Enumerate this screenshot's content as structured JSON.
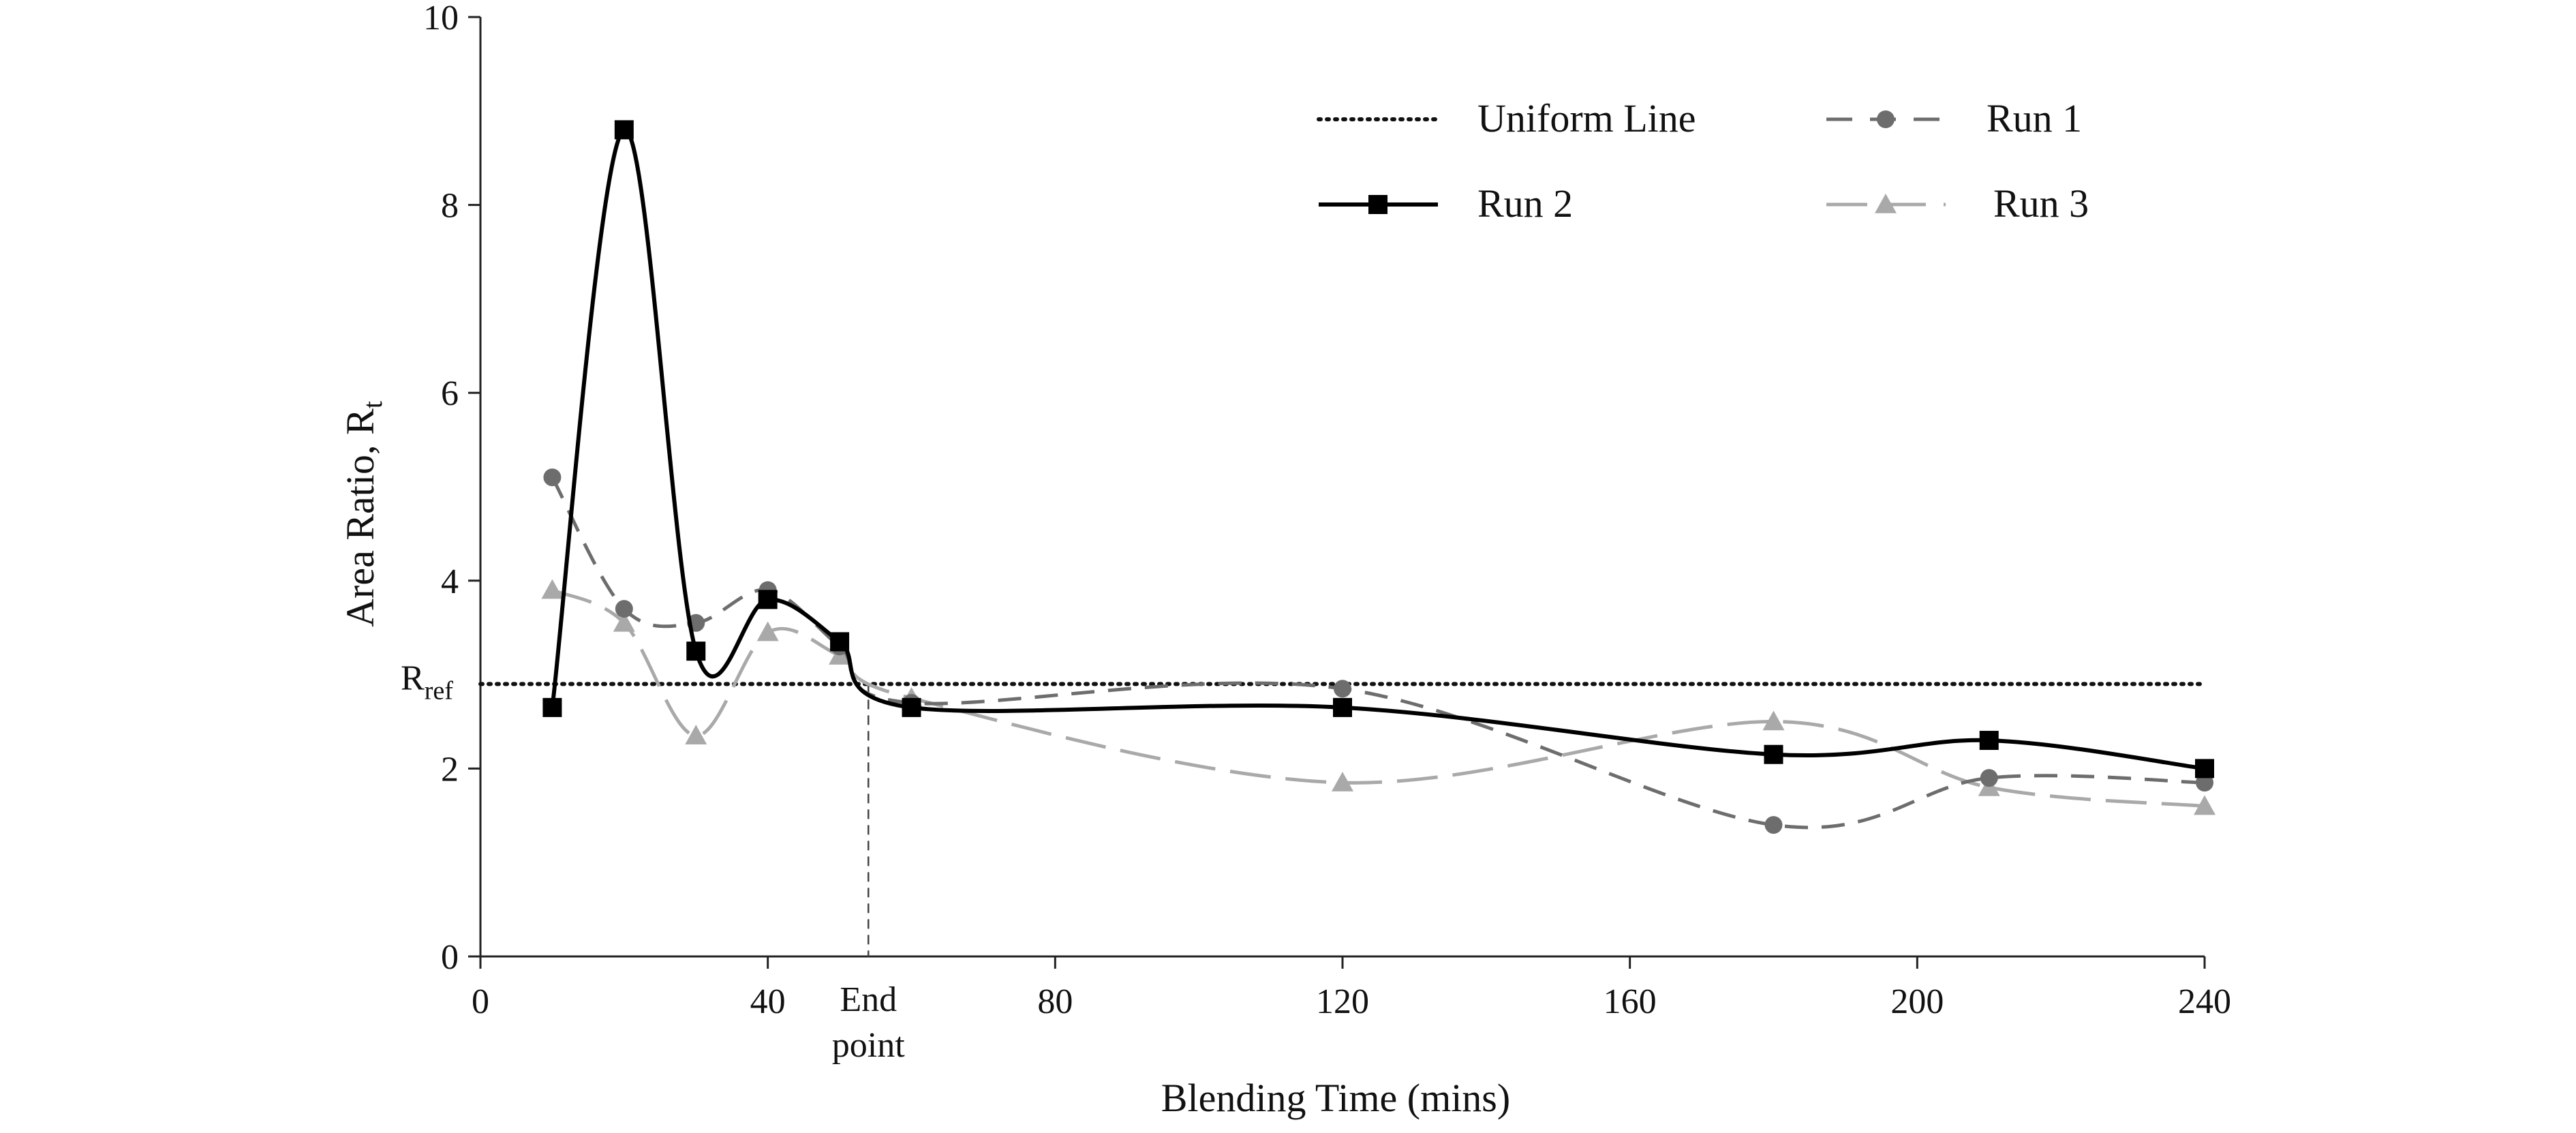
{
  "chart_data": {
    "type": "line",
    "title": "",
    "xlabel": "Blending Time (mins)",
    "ylabel_main": "Area Ratio, R",
    "ylabel_sub": "t",
    "xlim": [
      0,
      240
    ],
    "ylim": [
      0,
      10
    ],
    "x_ticks": [
      0,
      40,
      80,
      120,
      160,
      200,
      240
    ],
    "y_ticks": [
      0,
      2,
      4,
      6,
      8,
      10
    ],
    "grid": false,
    "legend_position": "top-right",
    "reference_line": {
      "name": "Uniform Line",
      "y": 2.9,
      "label_main": "R",
      "label_sub": "ref",
      "style": "dotted"
    },
    "end_point": {
      "x": 54,
      "label_line1": "End",
      "label_line2": "point"
    },
    "series": [
      {
        "name": "Run 1",
        "color": "#6d6d6d",
        "marker": "circle",
        "dash": "dashed",
        "x": [
          10,
          20,
          30,
          40,
          50,
          60,
          120,
          180,
          210,
          240
        ],
        "values": [
          5.1,
          3.7,
          3.55,
          3.9,
          3.3,
          2.7,
          2.85,
          1.4,
          1.9,
          1.85
        ]
      },
      {
        "name": "Run 2",
        "color": "#000000",
        "marker": "square",
        "dash": "solid",
        "x": [
          10,
          20,
          30,
          40,
          50,
          60,
          120,
          180,
          210,
          240
        ],
        "values": [
          2.65,
          8.8,
          3.25,
          3.8,
          3.35,
          2.65,
          2.65,
          2.15,
          2.3,
          2.0
        ]
      },
      {
        "name": "Run 3",
        "color": "#a9a9a9",
        "marker": "triangle",
        "dash": "long-dash",
        "x": [
          10,
          20,
          30,
          40,
          50,
          60,
          120,
          180,
          210,
          240
        ],
        "values": [
          3.9,
          3.55,
          2.35,
          3.45,
          3.2,
          2.75,
          1.85,
          2.5,
          1.8,
          1.6
        ]
      }
    ]
  }
}
